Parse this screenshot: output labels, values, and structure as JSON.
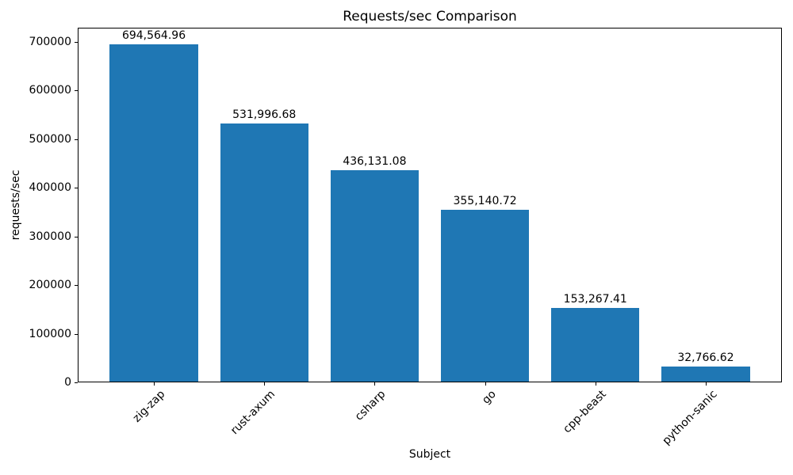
{
  "chart_data": {
    "type": "bar",
    "title": "Requests/sec Comparison",
    "xlabel": "Subject",
    "ylabel": "requests/sec",
    "categories": [
      "zig-zap",
      "rust-axum",
      "csharp",
      "go",
      "cpp-beast",
      "python-sanic"
    ],
    "values": [
      694564.96,
      531996.68,
      436131.08,
      355140.72,
      153267.41,
      32766.62
    ],
    "value_labels": [
      "694,564.96",
      "531,996.68",
      "436,131.08",
      "355,140.72",
      "153,267.41",
      "32,766.62"
    ],
    "yticks": [
      0,
      100000,
      200000,
      300000,
      400000,
      500000,
      600000,
      700000
    ],
    "ytick_labels": [
      "0",
      "100000",
      "200000",
      "300000",
      "400000",
      "500000",
      "600000",
      "700000"
    ],
    "ylim": [
      0,
      729293
    ],
    "bar_color": "#1f77b4",
    "bar_width_fraction": 0.8,
    "grid": false,
    "legend_position": "none"
  }
}
